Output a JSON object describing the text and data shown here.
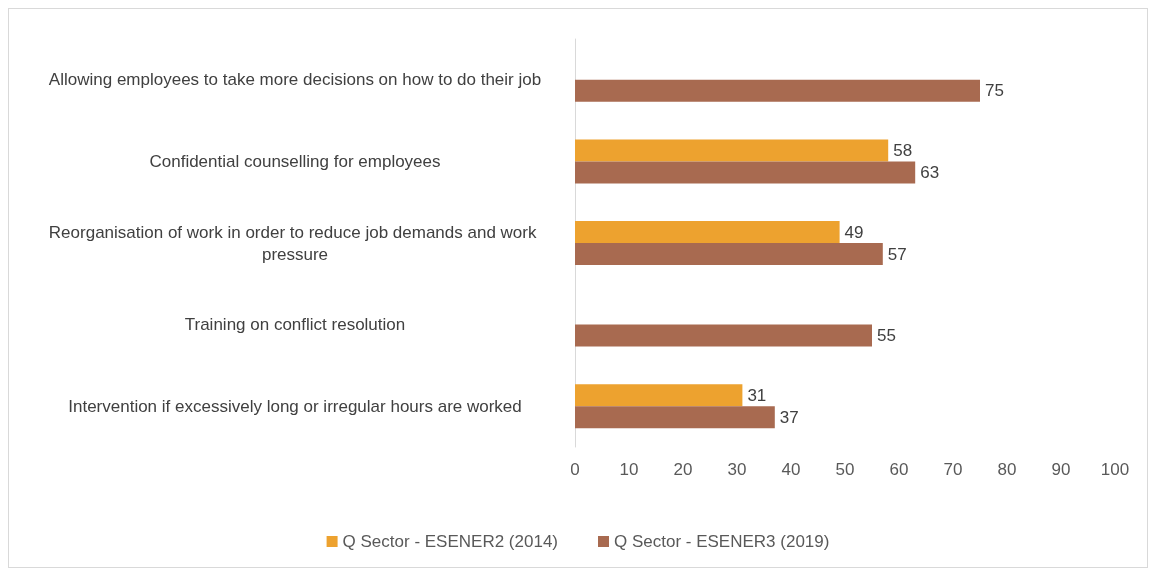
{
  "chart_data": {
    "type": "bar",
    "orientation": "horizontal",
    "categories": [
      "Allowing employees to take more decisions on how to do their job",
      "Confidential counselling for employees",
      "Reorganisation of work in order to reduce job demands and work pressure",
      "Training on conflict resolution",
      "Intervention if excessively long or irregular hours are worked"
    ],
    "series": [
      {
        "name": "Q Sector - ESENER2 (2014)",
        "color": "#eda22f",
        "values": [
          null,
          58,
          49,
          null,
          31
        ]
      },
      {
        "name": "Q Sector - ESENER3 (2019)",
        "color": "#a86a50",
        "values": [
          75,
          63,
          57,
          55,
          37
        ]
      }
    ],
    "xlim": [
      0,
      100
    ],
    "xticks": [
      0,
      10,
      20,
      30,
      40,
      50,
      60,
      70,
      80,
      90,
      100
    ],
    "data_labels": true,
    "grid": false,
    "legend": "bottom"
  }
}
